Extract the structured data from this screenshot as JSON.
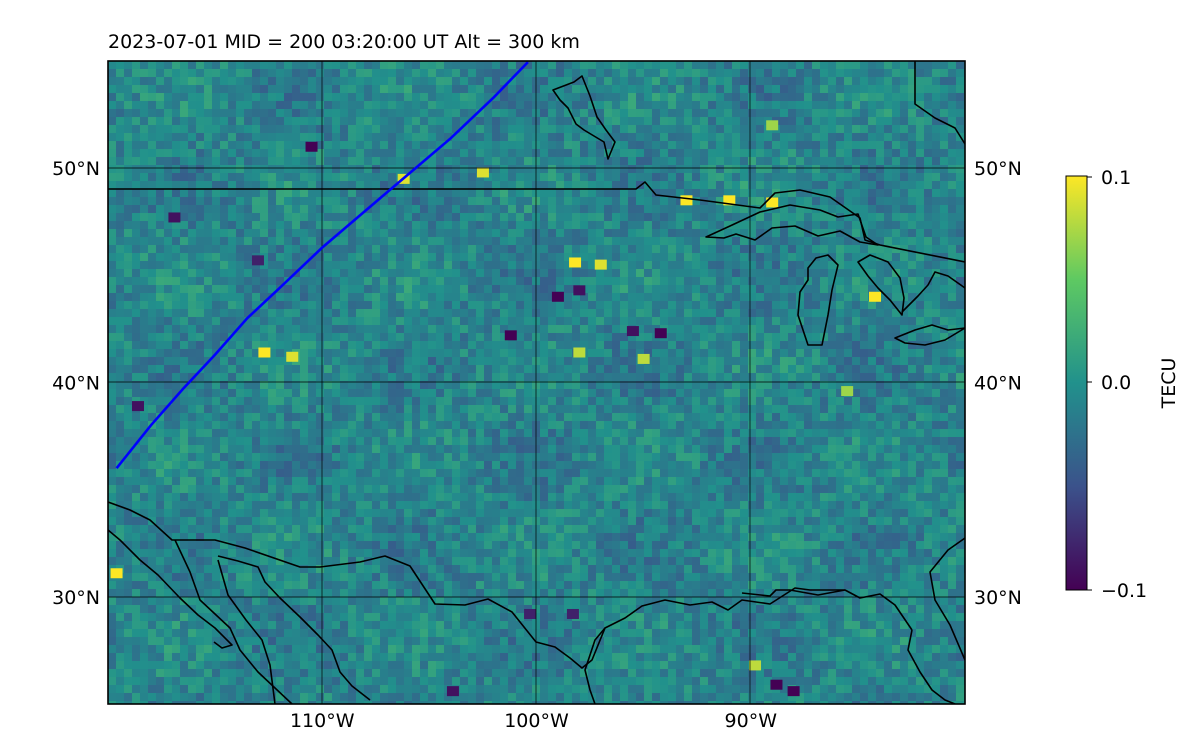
{
  "title": "2023-07-01  MID = 200    03:20:00  UT  Alt = 300 km",
  "colorbar": {
    "label": "TECU",
    "ticks": [
      "0.1",
      "0.0",
      "−0.1"
    ]
  },
  "colors": {
    "satellite_track": "#0000ff",
    "coastline": "#000000",
    "gridline": "#000000",
    "colormap": [
      "#440154",
      "#3b528b",
      "#21918c",
      "#5ec962",
      "#fde725"
    ]
  },
  "chart_data": {
    "type": "heatmap",
    "title": "2023-07-01  MID = 200    03:20:00  UT  Alt = 300 km",
    "projection": "equirectangular",
    "lon_range": [
      -120,
      -80
    ],
    "lat_range": [
      25,
      55
    ],
    "x_ticks": [
      {
        "value": -110,
        "label": "110°W"
      },
      {
        "value": -100,
        "label": "100°W"
      },
      {
        "value": -90,
        "label": "90°W"
      }
    ],
    "y_ticks": [
      {
        "value": 30,
        "label": "30°N"
      },
      {
        "value": 40,
        "label": "40°N"
      },
      {
        "value": 50,
        "label": "50°N"
      }
    ],
    "grid": true,
    "colorbar": {
      "label": "TECU",
      "vmin": -0.1,
      "vmax": 0.1,
      "colormap": "viridis",
      "position": "right"
    },
    "field_summary": "Detrended TEC perturbation map, values mostly near 0.0 TECU with scattered positive (~+0.1) and negative (~-0.1) cells; band of stronger positive perturbations near 41-47°N, 100-92°W and around the Great Lakes.",
    "hotspots": [
      {
        "lon": -98.2,
        "lat": 45.6,
        "value": 0.1
      },
      {
        "lon": -97.0,
        "lat": 45.5,
        "value": 0.09
      },
      {
        "lon": -93.0,
        "lat": 48.5,
        "value": 0.1
      },
      {
        "lon": -91.0,
        "lat": 48.5,
        "value": 0.1
      },
      {
        "lon": -89.0,
        "lat": 48.4,
        "value": 0.1
      },
      {
        "lon": -84.2,
        "lat": 44.0,
        "value": 0.1
      },
      {
        "lon": -112.7,
        "lat": 41.4,
        "value": 0.1
      },
      {
        "lon": -111.4,
        "lat": 41.2,
        "value": 0.09
      },
      {
        "lon": -106.2,
        "lat": 49.5,
        "value": 0.09
      },
      {
        "lon": -102.5,
        "lat": 49.8,
        "value": 0.09
      },
      {
        "lon": -119.6,
        "lat": 31.1,
        "value": 0.1
      },
      {
        "lon": -89.0,
        "lat": 52.0,
        "value": 0.07
      },
      {
        "lon": -95.0,
        "lat": 41.1,
        "value": 0.08
      },
      {
        "lon": -98.0,
        "lat": 41.4,
        "value": 0.08
      },
      {
        "lon": -85.5,
        "lat": 39.6,
        "value": 0.07
      },
      {
        "lon": -89.8,
        "lat": 26.8,
        "value": 0.08
      }
    ],
    "coldspots": [
      {
        "lon": -110.5,
        "lat": 51.0,
        "value": -0.1
      },
      {
        "lon": -99.0,
        "lat": 44.0,
        "value": -0.1
      },
      {
        "lon": -98.0,
        "lat": 44.3,
        "value": -0.09
      },
      {
        "lon": -101.2,
        "lat": 42.2,
        "value": -0.1
      },
      {
        "lon": -95.5,
        "lat": 42.4,
        "value": -0.09
      },
      {
        "lon": -94.2,
        "lat": 42.3,
        "value": -0.1
      },
      {
        "lon": -116.9,
        "lat": 47.7,
        "value": -0.09
      },
      {
        "lon": -118.6,
        "lat": 38.9,
        "value": -0.09
      },
      {
        "lon": -88.8,
        "lat": 25.9,
        "value": -0.1
      },
      {
        "lon": -88.0,
        "lat": 25.6,
        "value": -0.1
      },
      {
        "lon": -103.9,
        "lat": 25.6,
        "value": -0.09
      },
      {
        "lon": -100.3,
        "lat": 29.2,
        "value": -0.08
      },
      {
        "lon": -98.3,
        "lat": 29.2,
        "value": -0.08
      },
      {
        "lon": -113.0,
        "lat": 45.7,
        "value": -0.08
      }
    ],
    "satellite_track": {
      "color": "#0000ff",
      "lon": [
        -119.6,
        -118.0,
        -116.5,
        -115.0,
        -113.5,
        -112.0,
        -110.0,
        -108.0,
        -106.0,
        -104.0,
        -102.0,
        -100.4
      ],
      "lat": [
        36.0,
        38.0,
        39.7,
        41.3,
        43.0,
        44.4,
        46.3,
        48.0,
        49.7,
        51.4,
        53.3,
        54.95
      ]
    }
  }
}
